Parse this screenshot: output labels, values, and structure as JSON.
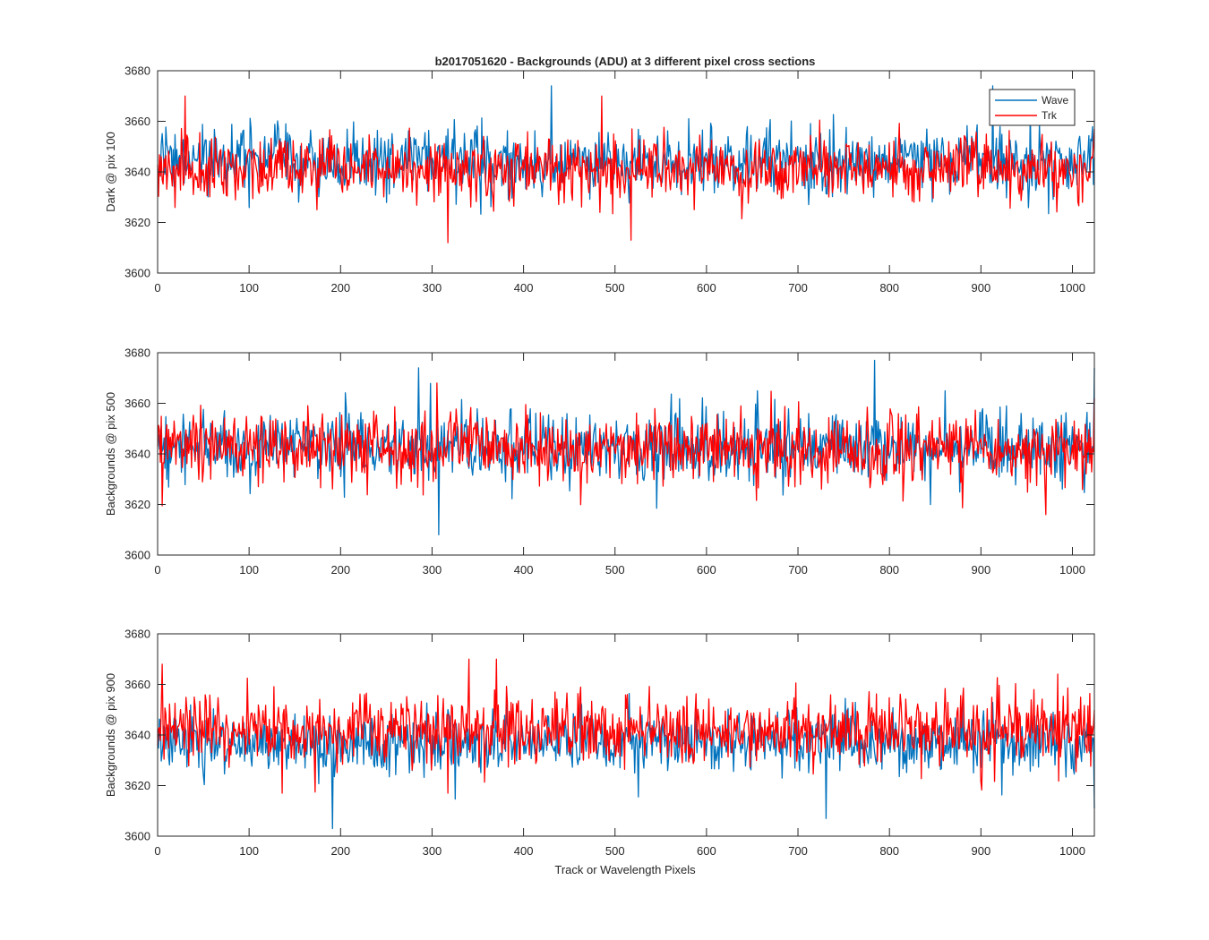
{
  "figure": {
    "title": "b2017051620 - Backgrounds (ADU) at 3 different pixel cross sections",
    "xlabel": "Track or Wavelength Pixels"
  },
  "legend": {
    "items": [
      {
        "label": "Wave",
        "color": "#0072BD"
      },
      {
        "label": "Trk",
        "color": "#FF0000"
      }
    ],
    "placement": "top-right of first subplot"
  },
  "colors": {
    "wave": "#0072BD",
    "trk": "#FF0000",
    "axis": "#262626"
  },
  "chart_data": [
    {
      "type": "line",
      "ylabel": "Dark @ pix 100",
      "xlim": [
        0,
        1024
      ],
      "ylim": [
        3600,
        3680
      ],
      "xticks": [
        0,
        100,
        200,
        300,
        400,
        500,
        600,
        700,
        800,
        900,
        1000
      ],
      "yticks": [
        3600,
        3620,
        3640,
        3660,
        3680
      ],
      "grid": false,
      "series": [
        {
          "name": "Wave",
          "color": "#0072BD",
          "n_points": 1024,
          "mean": 3644,
          "std": 6.5,
          "min": 3617,
          "max": 3674,
          "notable_points": [
            [
              430,
              3674
            ],
            [
              912,
              3674
            ],
            [
              1022,
              3635
            ]
          ]
        },
        {
          "name": "Trk",
          "color": "#FF0000",
          "n_points": 1024,
          "mean": 3641,
          "std": 6.5,
          "min": 3612,
          "max": 3670,
          "notable_points": [
            [
              30,
              3670
            ],
            [
              485,
              3670
            ],
            [
              317,
              3612
            ],
            [
              517,
              3613
            ],
            [
              1023,
              3657
            ]
          ]
        }
      ]
    },
    {
      "type": "line",
      "ylabel": "Backgrounds @ pix 500",
      "xlim": [
        0,
        1024
      ],
      "ylim": [
        3600,
        3680
      ],
      "xticks": [
        0,
        100,
        200,
        300,
        400,
        500,
        600,
        700,
        800,
        900,
        1000
      ],
      "yticks": [
        3600,
        3620,
        3640,
        3660,
        3680
      ],
      "grid": false,
      "series": [
        {
          "name": "Wave",
          "color": "#0072BD",
          "n_points": 1024,
          "mean": 3643,
          "std": 7.0,
          "min": 3608,
          "max": 3677,
          "notable_points": [
            [
              307,
              3608
            ],
            [
              285,
              3674
            ],
            [
              783,
              3677
            ],
            [
              1023,
              3674
            ]
          ]
        },
        {
          "name": "Trk",
          "color": "#FF0000",
          "n_points": 1024,
          "mean": 3642,
          "std": 7.0,
          "min": 3616,
          "max": 3668,
          "notable_points": [
            [
              305,
              3668
            ],
            [
              970,
              3616
            ],
            [
              1023,
              3662
            ]
          ]
        }
      ]
    },
    {
      "type": "line",
      "ylabel": "Backgrounds @ pix 900",
      "xlim": [
        0,
        1024
      ],
      "ylim": [
        3600,
        3680
      ],
      "xticks": [
        0,
        100,
        200,
        300,
        400,
        500,
        600,
        700,
        800,
        900,
        1000
      ],
      "yticks": [
        3600,
        3620,
        3640,
        3660,
        3680
      ],
      "grid": false,
      "series": [
        {
          "name": "Wave",
          "color": "#0072BD",
          "n_points": 1024,
          "mean": 3637,
          "std": 6.0,
          "min": 3603,
          "max": 3662,
          "notable_points": [
            [
              191,
              3603
            ],
            [
              730,
              3607
            ],
            [
              1023,
              3611
            ]
          ]
        },
        {
          "name": "Trk",
          "color": "#FF0000",
          "n_points": 1024,
          "mean": 3642,
          "std": 7.0,
          "min": 3617,
          "max": 3670,
          "notable_points": [
            [
              5,
              3668
            ],
            [
              340,
              3670
            ],
            [
              370,
              3670
            ],
            [
              317,
              3617
            ]
          ]
        }
      ]
    }
  ]
}
